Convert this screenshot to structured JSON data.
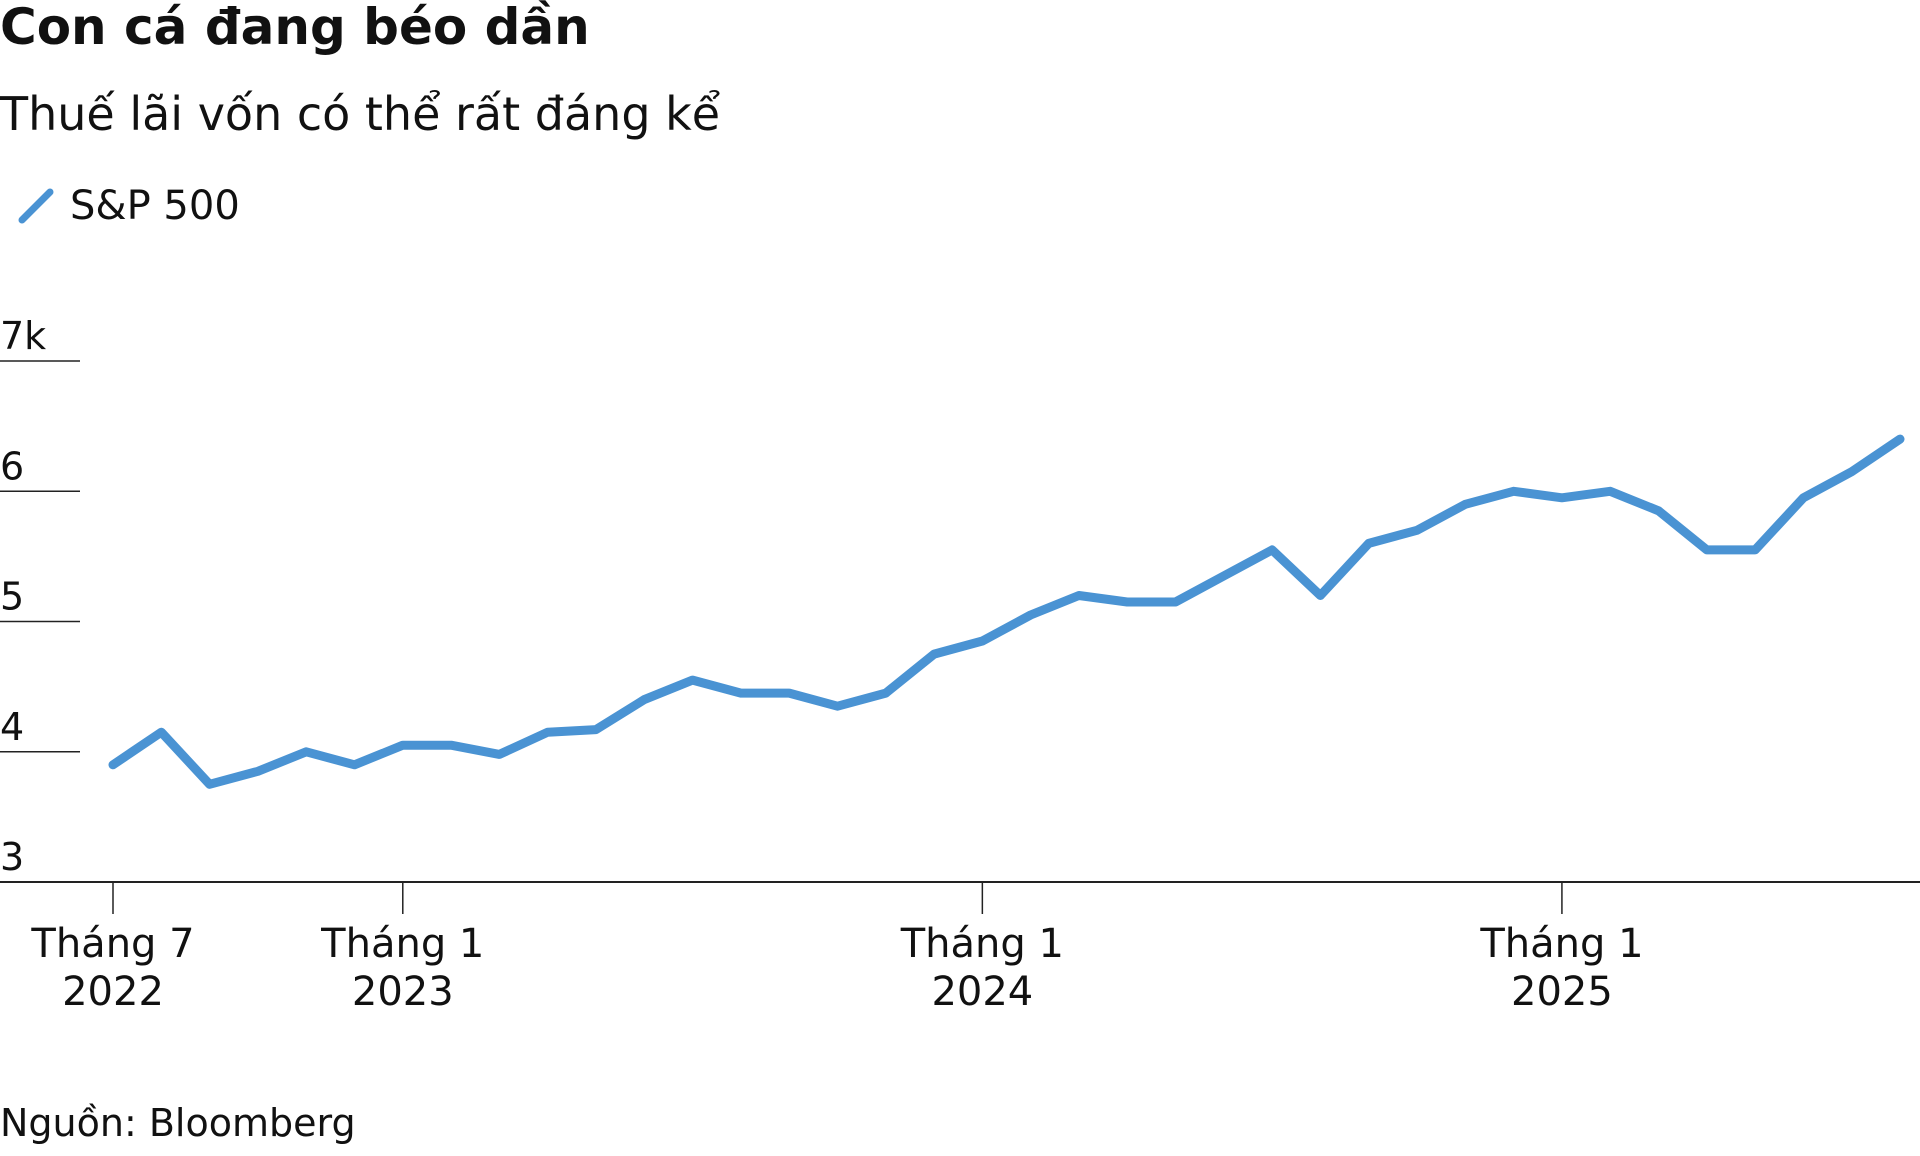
{
  "chart_data": {
    "type": "line",
    "title": "Con cá đang béo dần",
    "subtitle": "Thuế lãi vốn có thể rất đáng kể",
    "source": "Nguồn: Bloomberg",
    "x": [
      "2022-07",
      "2022-08",
      "2022-09",
      "2022-10",
      "2022-11",
      "2022-12",
      "2023-01",
      "2023-02",
      "2023-03",
      "2023-04",
      "2023-05",
      "2023-06",
      "2023-07",
      "2023-08",
      "2023-09",
      "2023-10",
      "2023-11",
      "2023-12",
      "2024-01",
      "2024-02",
      "2024-03",
      "2024-04",
      "2024-05",
      "2024-06",
      "2024-07",
      "2024-08",
      "2024-09",
      "2024-10",
      "2024-11",
      "2024-12",
      "2025-01",
      "2025-02",
      "2025-03",
      "2025-04",
      "2025-05",
      "2025-06",
      "2025-07",
      "2025-08"
    ],
    "series": [
      {
        "name": "S&P 500",
        "color": "#4a93d3",
        "values": [
          3.9,
          4.15,
          3.75,
          3.85,
          4.0,
          3.9,
          4.05,
          4.05,
          3.98,
          4.15,
          4.17,
          4.4,
          4.55,
          4.45,
          4.45,
          4.35,
          4.45,
          4.75,
          4.85,
          5.05,
          5.2,
          5.15,
          5.15,
          5.35,
          5.55,
          5.2,
          5.6,
          5.7,
          5.9,
          6.0,
          5.95,
          6.0,
          5.85,
          5.55,
          5.55,
          5.95,
          6.15,
          6.4
        ]
      }
    ],
    "ylim": [
      3,
      7
    ],
    "yticks": [
      3,
      4,
      5,
      6,
      {
        "value": 7,
        "label": "7k"
      }
    ],
    "xticks": [
      {
        "value": "2022-07",
        "label": "Tháng 7 2022"
      },
      {
        "value": "2023-01",
        "label": "Tháng 1 2023"
      },
      {
        "value": "2024-01",
        "label": "Tháng 1 2024"
      },
      {
        "value": "2025-01",
        "label": "Tháng 1 2025"
      }
    ]
  }
}
